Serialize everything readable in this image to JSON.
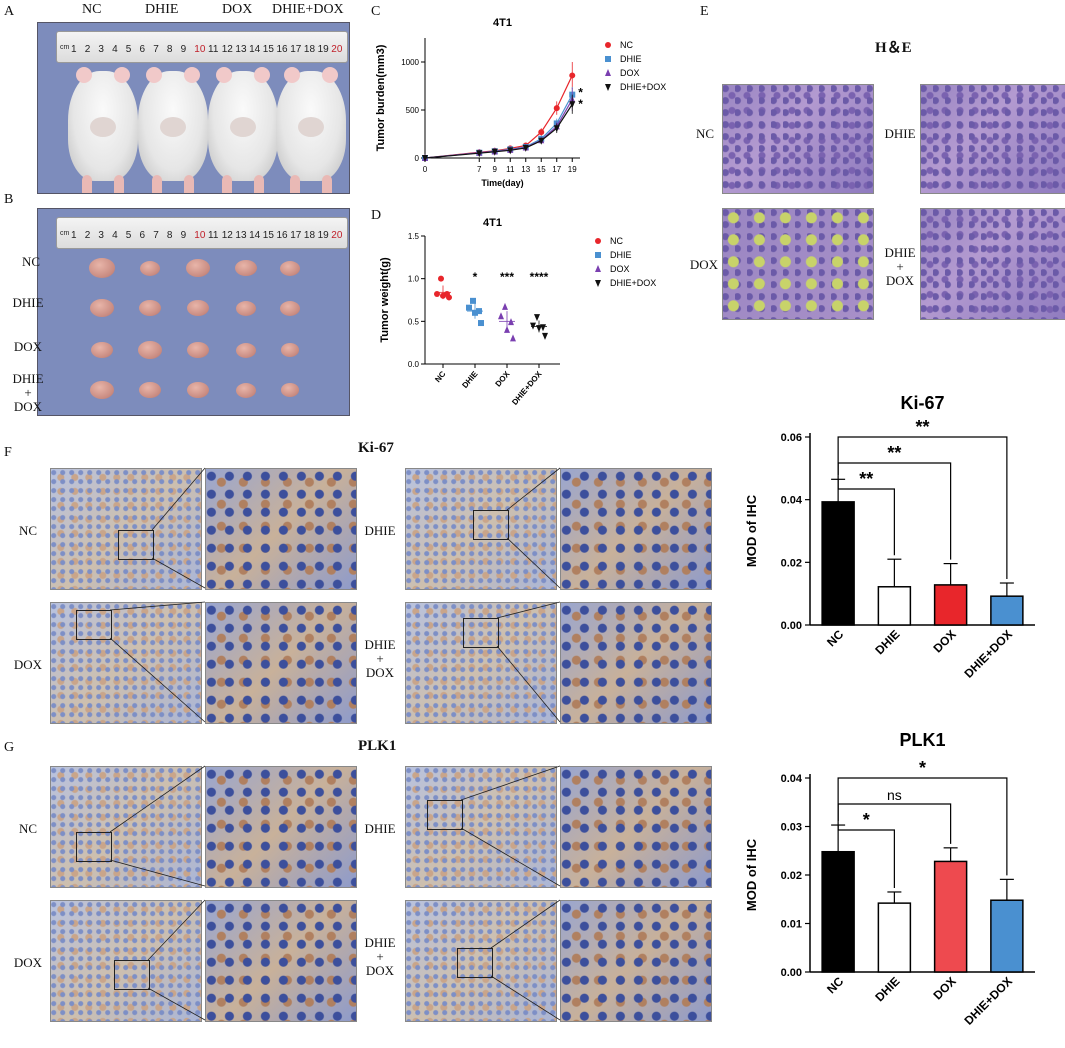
{
  "panels": {
    "A": "A",
    "B": "B",
    "C": "C",
    "D": "D",
    "E": "E",
    "F": "F",
    "G": "G"
  },
  "groups": [
    "NC",
    "DHIE",
    "DOX",
    "DHIE+DOX"
  ],
  "row_labels_b": [
    "NC",
    "DHIE",
    "DOX",
    "DHIE\n+\nDOX"
  ],
  "ruler": {
    "numbers": [
      "1",
      "2",
      "3",
      "4",
      "5",
      "6",
      "7",
      "8",
      "9",
      "10",
      "11",
      "12",
      "13",
      "14",
      "15",
      "16",
      "17",
      "18",
      "19",
      "20"
    ],
    "mark": "cm"
  },
  "he": {
    "title": "H＆E",
    "labels": [
      "NC",
      "DHIE",
      "DOX",
      "DHIE\n+\nDOX"
    ]
  },
  "ihc_ki67": {
    "title": "Ki-67",
    "labels": [
      "NC",
      "DHIE",
      "DOX",
      "DHIE\n+\nDOX"
    ]
  },
  "ihc_plk1": {
    "title": "PLK1",
    "labels": [
      "NC",
      "DHIE",
      "DOX",
      "DHIE\n+\nDOX"
    ]
  },
  "chart_data": [
    {
      "id": "C",
      "type": "line",
      "title": "4T1",
      "xlabel": "Time(day)",
      "ylabel": "Tumor burden(mm3)",
      "x": [
        0,
        7,
        9,
        11,
        13,
        15,
        17,
        19
      ],
      "xticks": [
        "0",
        "7",
        "9",
        "11",
        "13",
        "15",
        "17",
        "19"
      ],
      "ylim": [
        0,
        1250
      ],
      "yticks": [
        0,
        500,
        1000
      ],
      "legend": "top-right",
      "significance": [
        "*",
        "*"
      ],
      "series": [
        {
          "name": "NC",
          "color": "#e8262b",
          "marker": "circle",
          "values": [
            0,
            60,
            75,
            100,
            130,
            270,
            520,
            860
          ],
          "err": [
            0,
            10,
            10,
            15,
            20,
            40,
            70,
            140
          ]
        },
        {
          "name": "DHIE",
          "color": "#4a90d0",
          "marker": "square",
          "values": [
            0,
            55,
            70,
            90,
            115,
            200,
            360,
            660
          ],
          "err": [
            0,
            10,
            10,
            15,
            20,
            30,
            50,
            80
          ]
        },
        {
          "name": "DOX",
          "color": "#7a3fb0",
          "marker": "triangle-up",
          "values": [
            0,
            55,
            68,
            85,
            110,
            185,
            330,
            610
          ],
          "err": [
            0,
            10,
            10,
            15,
            20,
            30,
            50,
            120
          ]
        },
        {
          "name": "DHIE+DOX",
          "color": "#111111",
          "marker": "triangle-down",
          "values": [
            0,
            50,
            65,
            80,
            105,
            180,
            310,
            560
          ],
          "err": [
            0,
            10,
            10,
            15,
            20,
            30,
            50,
            100
          ]
        }
      ]
    },
    {
      "id": "D",
      "type": "scatter",
      "title": "4T1",
      "ylabel": "Tumor weight(g)",
      "categories": [
        "NC",
        "DHIE",
        "DOX",
        "DHIE+DOX"
      ],
      "ylim": [
        0,
        1.5
      ],
      "yticks": [
        0.0,
        0.5,
        1.0,
        1.5
      ],
      "legend": "right",
      "significance": [
        "",
        "*",
        "***",
        "****"
      ],
      "series": [
        {
          "name": "NC",
          "color": "#e8262b",
          "marker": "circle",
          "points": [
            1.0,
            0.82,
            0.82,
            0.8,
            0.78
          ],
          "mean": 0.84,
          "sd": 0.08
        },
        {
          "name": "DHIE",
          "color": "#4a90d0",
          "marker": "square",
          "points": [
            0.74,
            0.66,
            0.62,
            0.6,
            0.48
          ],
          "mean": 0.62,
          "sd": 0.09
        },
        {
          "name": "DOX",
          "color": "#7a3fb0",
          "marker": "triangle-up",
          "points": [
            0.67,
            0.56,
            0.49,
            0.4,
            0.3
          ],
          "mean": 0.5,
          "sd": 0.12
        },
        {
          "name": "DHIE+DOX",
          "color": "#111111",
          "marker": "triangle-down",
          "points": [
            0.55,
            0.45,
            0.43,
            0.42,
            0.33
          ],
          "mean": 0.44,
          "sd": 0.07
        }
      ]
    },
    {
      "id": "Ki67",
      "type": "bar",
      "title": "Ki-67",
      "ylabel": "MOD of IHC",
      "categories": [
        "NC",
        "DHIE",
        "DOX",
        "DHIE+DOX"
      ],
      "values": [
        0.0393,
        0.0122,
        0.0128,
        0.0092
      ],
      "err": [
        0.0072,
        0.0088,
        0.0068,
        0.0042
      ],
      "colors": [
        "#000000",
        "#ffffff",
        "#e8262b",
        "#4a90d0"
      ],
      "ylim": [
        0,
        0.06
      ],
      "yticks": [
        "0.00",
        "0.02",
        "0.04",
        "0.06"
      ],
      "brackets": [
        {
          "from": 0,
          "to": 1,
          "label": "**"
        },
        {
          "from": 0,
          "to": 2,
          "label": "**"
        },
        {
          "from": 0,
          "to": 3,
          "label": "**"
        }
      ]
    },
    {
      "id": "PLK1",
      "type": "bar",
      "title": "PLK1",
      "ylabel": "MOD of IHC",
      "categories": [
        "NC",
        "DHIE",
        "DOX",
        "DHIE+DOX"
      ],
      "values": [
        0.0248,
        0.0142,
        0.0228,
        0.0148
      ],
      "err": [
        0.0055,
        0.0023,
        0.0028,
        0.0043
      ],
      "colors": [
        "#000000",
        "#ffffff",
        "#ee4a4f",
        "#4a90d0"
      ],
      "ylim": [
        0,
        0.04
      ],
      "yticks": [
        "0.00",
        "0.01",
        "0.02",
        "0.03",
        "0.04"
      ],
      "brackets": [
        {
          "from": 0,
          "to": 1,
          "label": "*"
        },
        {
          "from": 0,
          "to": 2,
          "label": "ns"
        },
        {
          "from": 0,
          "to": 3,
          "label": "*"
        }
      ]
    }
  ]
}
